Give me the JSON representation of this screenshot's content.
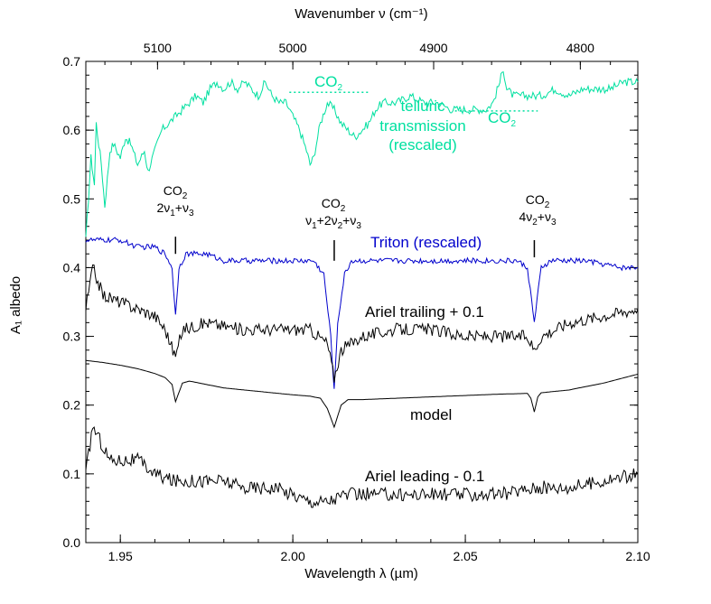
{
  "chart_data": {
    "type": "line",
    "title": "",
    "xlabel": "Wavelength λ (µm)",
    "ylabel": "A₁ albedo",
    "top_xlabel": "Wavenumber ν (cm⁻¹)",
    "xlim": [
      1.94,
      2.1
    ],
    "ylim": [
      0.0,
      0.7
    ],
    "x_ticks": [
      {
        "value": 1.95,
        "label": "1.95"
      },
      {
        "value": 2.0,
        "label": "2.00"
      },
      {
        "value": 2.05,
        "label": "2.05"
      },
      {
        "value": 2.1,
        "label": "2.10"
      }
    ],
    "y_ticks": [
      {
        "value": 0.0,
        "label": "0.0"
      },
      {
        "value": 0.1,
        "label": "0.1"
      },
      {
        "value": 0.2,
        "label": "0.2"
      },
      {
        "value": 0.3,
        "label": "0.3"
      },
      {
        "value": 0.4,
        "label": "0.4"
      },
      {
        "value": 0.5,
        "label": "0.5"
      },
      {
        "value": 0.6,
        "label": "0.6"
      },
      {
        "value": 0.7,
        "label": "0.7"
      }
    ],
    "top_ticks": [
      {
        "value": 5100,
        "label": "5100"
      },
      {
        "value": 5000,
        "label": "5000"
      },
      {
        "value": 4900,
        "label": "4900"
      },
      {
        "value": 4800,
        "label": "4800"
      }
    ],
    "series": [
      {
        "key": "telluric",
        "color": "#00e0a0",
        "noise": 0.006,
        "points": [
          [
            1.94,
            0.44
          ],
          [
            1.9415,
            0.56
          ],
          [
            1.9425,
            0.52
          ],
          [
            1.943,
            0.61
          ],
          [
            1.9445,
            0.55
          ],
          [
            1.9455,
            0.49
          ],
          [
            1.947,
            0.57
          ],
          [
            1.948,
            0.58
          ],
          [
            1.95,
            0.56
          ],
          [
            1.9515,
            0.59
          ],
          [
            1.953,
            0.58
          ],
          [
            1.955,
            0.55
          ],
          [
            1.957,
            0.57
          ],
          [
            1.958,
            0.54
          ],
          [
            1.96,
            0.57
          ],
          [
            1.962,
            0.6
          ],
          [
            1.964,
            0.61
          ],
          [
            1.966,
            0.62
          ],
          [
            1.968,
            0.63
          ],
          [
            1.97,
            0.64
          ],
          [
            1.972,
            0.65
          ],
          [
            1.974,
            0.64
          ],
          [
            1.976,
            0.66
          ],
          [
            1.978,
            0.67
          ],
          [
            1.98,
            0.66
          ],
          [
            1.982,
            0.67
          ],
          [
            1.984,
            0.66
          ],
          [
            1.986,
            0.67
          ],
          [
            1.988,
            0.66
          ],
          [
            1.99,
            0.65
          ],
          [
            1.992,
            0.67
          ],
          [
            1.994,
            0.65
          ],
          [
            1.996,
            0.64
          ],
          [
            1.998,
            0.64
          ],
          [
            2.0,
            0.62
          ],
          [
            2.002,
            0.6
          ],
          [
            2.004,
            0.57
          ],
          [
            2.005,
            0.55
          ],
          [
            2.006,
            0.56
          ],
          [
            2.008,
            0.61
          ],
          [
            2.01,
            0.64
          ],
          [
            2.012,
            0.63
          ],
          [
            2.014,
            0.61
          ],
          [
            2.016,
            0.6
          ],
          [
            2.018,
            0.59
          ],
          [
            2.02,
            0.6
          ],
          [
            2.022,
            0.61
          ],
          [
            2.024,
            0.63
          ],
          [
            2.026,
            0.64
          ],
          [
            2.028,
            0.64
          ],
          [
            2.03,
            0.64
          ],
          [
            2.034,
            0.65
          ],
          [
            2.038,
            0.64
          ],
          [
            2.042,
            0.64
          ],
          [
            2.046,
            0.63
          ],
          [
            2.05,
            0.63
          ],
          [
            2.054,
            0.63
          ],
          [
            2.056,
            0.63
          ],
          [
            2.058,
            0.64
          ],
          [
            2.06,
            0.67
          ],
          [
            2.061,
            0.69
          ],
          [
            2.062,
            0.66
          ],
          [
            2.064,
            0.65
          ],
          [
            2.068,
            0.65
          ],
          [
            2.072,
            0.65
          ],
          [
            2.076,
            0.66
          ],
          [
            2.08,
            0.65
          ],
          [
            2.084,
            0.66
          ],
          [
            2.088,
            0.66
          ],
          [
            2.092,
            0.66
          ],
          [
            2.096,
            0.67
          ],
          [
            2.1,
            0.67
          ]
        ]
      },
      {
        "key": "triton",
        "color": "#0000cc",
        "noise": 0.004,
        "points": [
          [
            1.94,
            0.44
          ],
          [
            1.945,
            0.44
          ],
          [
            1.95,
            0.44
          ],
          [
            1.955,
            0.43
          ],
          [
            1.96,
            0.43
          ],
          [
            1.963,
            0.42
          ],
          [
            1.965,
            0.4
          ],
          [
            1.966,
            0.33
          ],
          [
            1.967,
            0.4
          ],
          [
            1.969,
            0.42
          ],
          [
            1.975,
            0.42
          ],
          [
            1.98,
            0.41
          ],
          [
            1.99,
            0.41
          ],
          [
            2.0,
            0.41
          ],
          [
            2.006,
            0.41
          ],
          [
            2.009,
            0.39
          ],
          [
            2.011,
            0.3
          ],
          [
            2.012,
            0.22
          ],
          [
            2.013,
            0.32
          ],
          [
            2.015,
            0.39
          ],
          [
            2.017,
            0.41
          ],
          [
            2.025,
            0.41
          ],
          [
            2.035,
            0.41
          ],
          [
            2.045,
            0.41
          ],
          [
            2.055,
            0.41
          ],
          [
            2.065,
            0.41
          ],
          [
            2.068,
            0.4
          ],
          [
            2.07,
            0.32
          ],
          [
            2.072,
            0.4
          ],
          [
            2.075,
            0.41
          ],
          [
            2.085,
            0.41
          ],
          [
            2.095,
            0.4
          ],
          [
            2.1,
            0.4
          ]
        ]
      },
      {
        "key": "ariel-trailing",
        "color": "#000000",
        "noise": 0.009,
        "points": [
          [
            1.94,
            0.34
          ],
          [
            1.942,
            0.4
          ],
          [
            1.945,
            0.36
          ],
          [
            1.95,
            0.35
          ],
          [
            1.955,
            0.34
          ],
          [
            1.96,
            0.33
          ],
          [
            1.963,
            0.31
          ],
          [
            1.966,
            0.27
          ],
          [
            1.968,
            0.31
          ],
          [
            1.975,
            0.32
          ],
          [
            1.985,
            0.31
          ],
          [
            1.995,
            0.31
          ],
          [
            2.005,
            0.31
          ],
          [
            2.01,
            0.29
          ],
          [
            2.012,
            0.24
          ],
          [
            2.014,
            0.28
          ],
          [
            2.02,
            0.3
          ],
          [
            2.03,
            0.31
          ],
          [
            2.04,
            0.31
          ],
          [
            2.05,
            0.3
          ],
          [
            2.06,
            0.3
          ],
          [
            2.068,
            0.3
          ],
          [
            2.07,
            0.28
          ],
          [
            2.072,
            0.3
          ],
          [
            2.08,
            0.32
          ],
          [
            2.09,
            0.33
          ],
          [
            2.1,
            0.34
          ]
        ]
      },
      {
        "key": "model",
        "color": "#000000",
        "noise": 0.0,
        "points": [
          [
            1.94,
            0.265
          ],
          [
            1.945,
            0.262
          ],
          [
            1.95,
            0.258
          ],
          [
            1.955,
            0.253
          ],
          [
            1.96,
            0.246
          ],
          [
            1.963,
            0.24
          ],
          [
            1.965,
            0.23
          ],
          [
            1.966,
            0.205
          ],
          [
            1.968,
            0.232
          ],
          [
            1.97,
            0.235
          ],
          [
            1.975,
            0.23
          ],
          [
            1.98,
            0.225
          ],
          [
            1.99,
            0.22
          ],
          [
            2.0,
            0.215
          ],
          [
            2.005,
            0.213
          ],
          [
            2.008,
            0.21
          ],
          [
            2.01,
            0.195
          ],
          [
            2.012,
            0.168
          ],
          [
            2.014,
            0.2
          ],
          [
            2.016,
            0.208
          ],
          [
            2.02,
            0.208
          ],
          [
            2.03,
            0.21
          ],
          [
            2.04,
            0.212
          ],
          [
            2.05,
            0.214
          ],
          [
            2.06,
            0.216
          ],
          [
            2.068,
            0.217
          ],
          [
            2.069,
            0.21
          ],
          [
            2.07,
            0.19
          ],
          [
            2.071,
            0.212
          ],
          [
            2.072,
            0.218
          ],
          [
            2.08,
            0.222
          ],
          [
            2.09,
            0.232
          ],
          [
            2.1,
            0.245
          ]
        ]
      },
      {
        "key": "ariel-leading",
        "color": "#000000",
        "noise": 0.01,
        "points": [
          [
            1.94,
            0.1
          ],
          [
            1.942,
            0.17
          ],
          [
            1.944,
            0.15
          ],
          [
            1.947,
            0.12
          ],
          [
            1.95,
            0.12
          ],
          [
            1.955,
            0.12
          ],
          [
            1.96,
            0.1
          ],
          [
            1.965,
            0.09
          ],
          [
            1.97,
            0.09
          ],
          [
            1.975,
            0.09
          ],
          [
            1.98,
            0.09
          ],
          [
            1.985,
            0.08
          ],
          [
            1.99,
            0.08
          ],
          [
            1.995,
            0.08
          ],
          [
            2.0,
            0.07
          ],
          [
            2.005,
            0.06
          ],
          [
            2.01,
            0.06
          ],
          [
            2.015,
            0.07
          ],
          [
            2.02,
            0.07
          ],
          [
            2.03,
            0.07
          ],
          [
            2.04,
            0.07
          ],
          [
            2.05,
            0.07
          ],
          [
            2.06,
            0.07
          ],
          [
            2.07,
            0.08
          ],
          [
            2.08,
            0.08
          ],
          [
            2.09,
            0.09
          ],
          [
            2.1,
            0.1
          ]
        ]
      }
    ],
    "telluric_co2_bands": [
      {
        "x": [
          1.999,
          2.022
        ],
        "y": 0.655
      },
      {
        "x": [
          2.047,
          2.071
        ],
        "y": 0.628
      }
    ],
    "band_markers": [
      {
        "x": 1.966,
        "y": [
          0.42,
          0.445
        ]
      },
      {
        "x": 2.012,
        "y": [
          0.41,
          0.44
        ]
      },
      {
        "x": 2.07,
        "y": [
          0.415,
          0.44
        ]
      }
    ]
  },
  "annotations": {
    "telluric_co2_a": {
      "pre": "CO",
      "sub": "2"
    },
    "telluric_co2_b": {
      "pre": "CO",
      "sub": "2"
    },
    "telluric_label": [
      "telluric",
      "transmission",
      "(rescaled)"
    ],
    "triton_label": "Triton (rescaled)",
    "trailing_label": "Ariel trailing + 0.1",
    "model_label": "model",
    "leading_label": "Ariel leading - 0.1",
    "band1": {
      "name": "CO",
      "name_sub": "2",
      "mode": [
        [
          "2ν",
          ""
        ],
        [
          "1",
          "sub"
        ],
        [
          "+ν",
          ""
        ],
        [
          "3",
          "sub"
        ]
      ]
    },
    "band2": {
      "name": "CO",
      "name_sub": "2",
      "mode": [
        [
          "ν",
          ""
        ],
        [
          "1",
          "sub"
        ],
        [
          "+2ν",
          ""
        ],
        [
          "2",
          "sub"
        ],
        [
          "+ν",
          ""
        ],
        [
          "3",
          "sub"
        ]
      ]
    },
    "band3": {
      "name": "CO",
      "name_sub": "2",
      "mode": [
        [
          "4ν",
          ""
        ],
        [
          "2",
          "sub"
        ],
        [
          "+ν",
          ""
        ],
        [
          "3",
          "sub"
        ]
      ]
    }
  }
}
